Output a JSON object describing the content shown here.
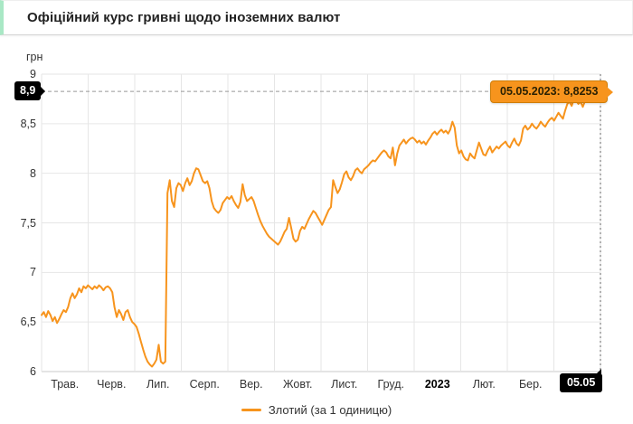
{
  "header": {
    "title": "Офіційний курс гривні щодо іноземних валют"
  },
  "chart": {
    "y_axis_unit": "грн",
    "crosshair": {
      "y_label": "8,9",
      "x_label": "05.05"
    },
    "tooltip_text": "05.05.2023: 8,8253",
    "legend_label": "Злотий (за 1 одиницю)"
  },
  "colors": {
    "series_line": "#f7941d",
    "tooltip_bg": "#f7941d",
    "tooltip_border": "#cf7d08",
    "crosshair_label_bg": "#000000",
    "grid": "#e6e6e6",
    "axis_line": "#c9c9c9",
    "crosshair_line": "#999999",
    "title_accent": "#a9e8c5",
    "tick_text": "#333333"
  },
  "chart_data": {
    "type": "line",
    "title": "Офіційний курс гривні щодо іноземних валют",
    "ylabel": "грн",
    "ylim": [
      6,
      9
    ],
    "y_ticks": [
      6,
      6.5,
      7,
      7.5,
      8,
      8.5,
      9
    ],
    "y_tick_labels": [
      "6",
      "6,5",
      "7",
      "7,5",
      "8",
      "8,5",
      "9"
    ],
    "x_tick_labels": [
      "Трав.",
      "Черв.",
      "Лип.",
      "Серп.",
      "Вер.",
      "Жовт.",
      "Лист.",
      "Груд.",
      "2023",
      "Лют.",
      "Бер."
    ],
    "x_bold_label": "2023",
    "x_range": "Трав. 2022 — 05.05.2023",
    "grid": true,
    "legend_position": "bottom",
    "last_point": {
      "date": "05.05.2023",
      "value": 8.8253,
      "axis_value_label": "8,9",
      "axis_date_label": "05.05"
    },
    "series": [
      {
        "name": "Злотий (за 1 одиницю)",
        "color": "#f7941d",
        "values": [
          6.57,
          6.6,
          6.55,
          6.61,
          6.57,
          6.51,
          6.55,
          6.49,
          6.53,
          6.58,
          6.62,
          6.6,
          6.65,
          6.74,
          6.79,
          6.74,
          6.78,
          6.84,
          6.8,
          6.86,
          6.84,
          6.87,
          6.85,
          6.83,
          6.86,
          6.84,
          6.87,
          6.85,
          6.82,
          6.85,
          6.86,
          6.84,
          6.8,
          6.65,
          6.55,
          6.62,
          6.58,
          6.52,
          6.6,
          6.62,
          6.55,
          6.5,
          6.48,
          6.45,
          6.38,
          6.3,
          6.22,
          6.15,
          6.1,
          6.07,
          6.05,
          6.08,
          6.12,
          6.27,
          6.1,
          6.08,
          6.1,
          7.8,
          7.93,
          7.72,
          7.66,
          7.85,
          7.9,
          7.88,
          7.82,
          7.9,
          7.95,
          7.88,
          7.92,
          8.0,
          8.05,
          8.04,
          7.98,
          7.92,
          7.9,
          7.92,
          7.85,
          7.72,
          7.65,
          7.62,
          7.6,
          7.63,
          7.7,
          7.73,
          7.76,
          7.74,
          7.77,
          7.72,
          7.68,
          7.65,
          7.71,
          7.89,
          7.78,
          7.72,
          7.74,
          7.76,
          7.72,
          7.65,
          7.58,
          7.52,
          7.47,
          7.43,
          7.39,
          7.36,
          7.34,
          7.32,
          7.3,
          7.28,
          7.31,
          7.36,
          7.41,
          7.44,
          7.55,
          7.45,
          7.34,
          7.31,
          7.33,
          7.42,
          7.46,
          7.44,
          7.49,
          7.54,
          7.58,
          7.62,
          7.6,
          7.56,
          7.52,
          7.48,
          7.53,
          7.58,
          7.63,
          7.66,
          7.93,
          7.86,
          7.8,
          7.84,
          7.91,
          7.99,
          8.02,
          7.96,
          7.93,
          7.97,
          8.03,
          8.05,
          8.02,
          8.0,
          8.04,
          8.06,
          8.08,
          8.11,
          8.13,
          8.12,
          8.15,
          8.18,
          8.21,
          8.23,
          8.21,
          8.17,
          8.15,
          8.26,
          8.08,
          8.2,
          8.28,
          8.31,
          8.34,
          8.3,
          8.33,
          8.35,
          8.36,
          8.34,
          8.31,
          8.33,
          8.3,
          8.32,
          8.29,
          8.33,
          8.36,
          8.4,
          8.42,
          8.39,
          8.42,
          8.44,
          8.41,
          8.43,
          8.4,
          8.44,
          8.52,
          8.46,
          8.28,
          8.2,
          8.23,
          8.17,
          8.14,
          8.13,
          8.2,
          8.17,
          8.15,
          8.23,
          8.31,
          8.25,
          8.19,
          8.18,
          8.23,
          8.27,
          8.21,
          8.24,
          8.27,
          8.25,
          8.28,
          8.3,
          8.32,
          8.28,
          8.26,
          8.31,
          8.35,
          8.3,
          8.28,
          8.33,
          8.45,
          8.48,
          8.44,
          8.46,
          8.5,
          8.47,
          8.45,
          8.48,
          8.52,
          8.49,
          8.47,
          8.51,
          8.54,
          8.56,
          8.53,
          8.57,
          8.61,
          8.58,
          8.55,
          8.63,
          8.7,
          8.72,
          8.68,
          8.75,
          8.73,
          8.7,
          8.72,
          8.67,
          8.73,
          8.77,
          8.74,
          8.72,
          8.76,
          8.79,
          8.82,
          8.8253
        ]
      }
    ]
  }
}
